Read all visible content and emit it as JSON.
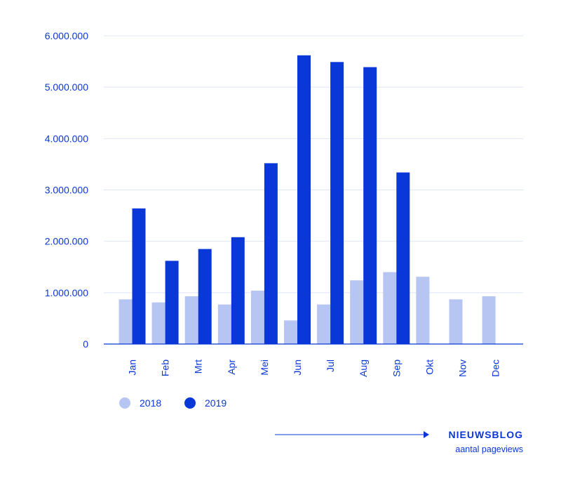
{
  "chart_data": {
    "type": "bar",
    "title": "",
    "xlabel": "",
    "ylabel": "",
    "ylim": [
      0,
      6000000
    ],
    "yticks": [
      0,
      1000000,
      2000000,
      3000000,
      4000000,
      5000000,
      6000000
    ],
    "ytick_labels": [
      "0",
      "1.000.000",
      "2.000.000",
      "3.000.000",
      "4.000.000",
      "5.000.000",
      "6.000.000"
    ],
    "categories": [
      "Jan",
      "Feb",
      "Mrt",
      "Apr",
      "Mei",
      "Jun",
      "Jul",
      "Aug",
      "Sep",
      "Okt",
      "Nov",
      "Dec"
    ],
    "series": [
      {
        "name": "2018",
        "color": "#b7c5f3",
        "values": [
          870000,
          810000,
          930000,
          770000,
          1040000,
          460000,
          770000,
          1240000,
          1400000,
          1310000,
          870000,
          930000
        ]
      },
      {
        "name": "2019",
        "color": "#0a37d8",
        "values": [
          2640000,
          1620000,
          1850000,
          2080000,
          3520000,
          5620000,
          5490000,
          5390000,
          3340000,
          null,
          null,
          null
        ]
      }
    ],
    "grid": true,
    "legend": "bottom-left"
  },
  "brand": {
    "title": "NIEUWSBLOG",
    "subtitle": "aantal pageviews"
  },
  "colors": {
    "axis": "#0a37d8",
    "grid": "#dfe4f6",
    "text": "#0a37d8"
  }
}
